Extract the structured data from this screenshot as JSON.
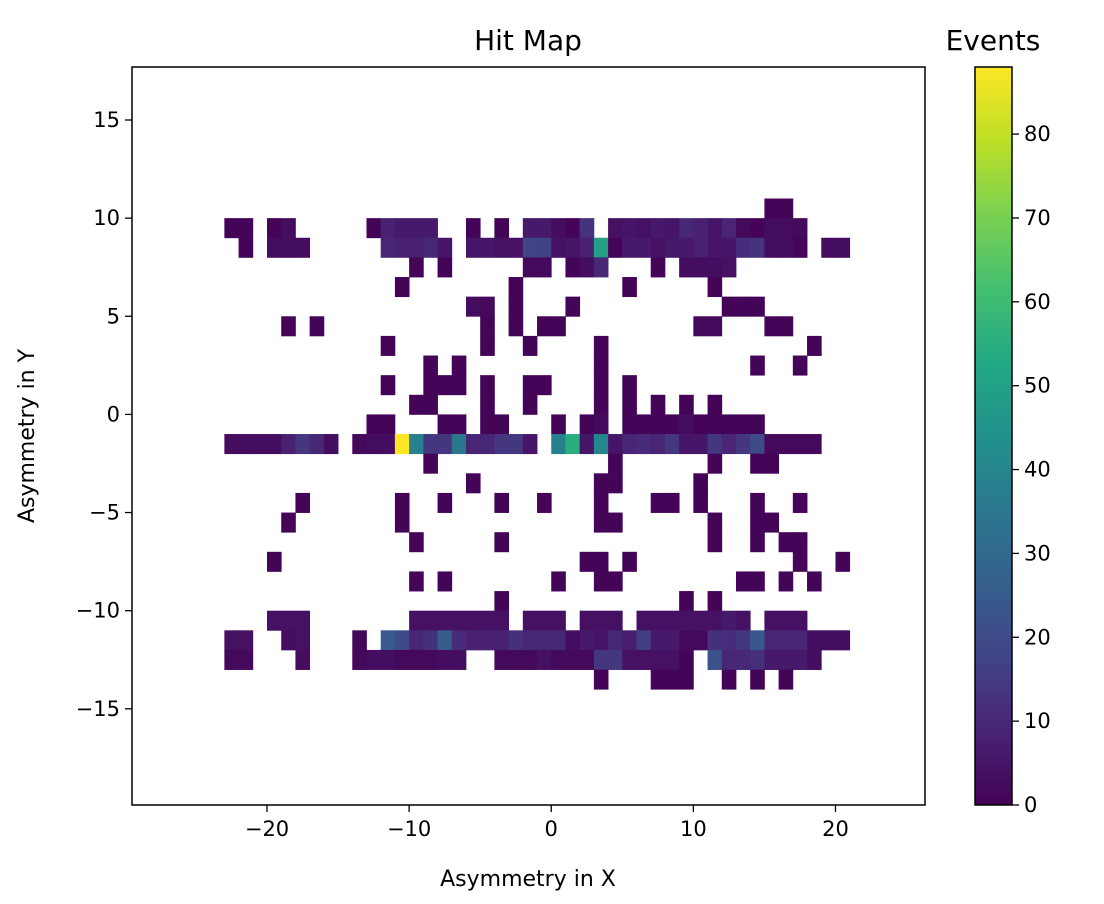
{
  "chart_data": {
    "type": "heatmap",
    "title": "Hit Map",
    "xlabel": "Asymmetry in X",
    "ylabel": "Asymmetry in Y",
    "xlim": [
      -29.5,
      26.3
    ],
    "ylim": [
      -19.9,
      17.7
    ],
    "xticks": [
      -20,
      -10,
      0,
      10,
      20
    ],
    "yticks": [
      -15,
      -10,
      -5,
      0,
      5,
      10,
      15
    ],
    "colorbar": {
      "title": "Events",
      "min": 0,
      "max": 88,
      "ticks": [
        0,
        10,
        20,
        30,
        40,
        50,
        60,
        70,
        80
      ],
      "colormap": "viridis"
    },
    "bins": {
      "x0": -23.0,
      "dx": 1.0,
      "y_rows": [
        10.5,
        9.5,
        8.5,
        7.5,
        6.5,
        5.5,
        4.5,
        3.5,
        2.5,
        1.5,
        0.5,
        -0.5,
        -1.5,
        -2.5,
        -3.5,
        -4.5,
        -5.5,
        -6.5,
        -7.5,
        -8.5,
        -9.5,
        -10.5,
        -11.5,
        -12.5,
        -13.5
      ],
      "rows": [
        [
          0,
          0,
          0,
          0,
          0,
          0,
          0,
          0,
          0,
          0,
          0,
          0,
          0,
          0,
          0,
          0,
          0,
          0,
          0,
          0,
          0,
          0,
          0,
          0,
          0,
          0,
          0,
          0,
          0,
          0,
          0,
          0,
          0,
          0,
          0,
          0,
          0,
          0,
          1,
          1,
          0,
          0,
          0,
          0
        ],
        [
          1,
          1,
          0,
          1,
          3,
          0,
          0,
          0,
          0,
          0,
          1,
          8,
          6,
          6,
          6,
          0,
          0,
          1,
          0,
          1,
          0,
          6,
          6,
          3,
          1,
          13,
          0,
          4,
          5,
          4,
          6,
          5,
          10,
          8,
          5,
          9,
          2,
          1,
          3,
          3,
          2,
          0,
          0,
          0
        ],
        [
          0,
          1,
          0,
          3,
          3,
          3,
          0,
          0,
          0,
          0,
          0,
          9,
          8,
          8,
          10,
          5,
          0,
          5,
          5,
          4,
          4,
          18,
          17,
          4,
          5,
          8,
          50,
          1,
          6,
          6,
          4,
          6,
          6,
          8,
          5,
          5,
          11,
          13,
          3,
          3,
          1,
          0,
          3,
          3
        ],
        [
          0,
          0,
          0,
          0,
          0,
          0,
          0,
          0,
          0,
          0,
          0,
          0,
          0,
          1,
          0,
          1,
          0,
          0,
          0,
          0,
          0,
          2,
          2,
          0,
          1,
          3,
          10,
          0,
          0,
          0,
          1,
          0,
          3,
          3,
          3,
          4,
          0,
          0,
          0,
          0,
          0,
          0,
          0,
          0
        ],
        [
          0,
          0,
          0,
          0,
          0,
          0,
          0,
          0,
          0,
          0,
          0,
          0,
          1,
          0,
          0,
          0,
          0,
          0,
          0,
          0,
          1,
          0,
          0,
          0,
          0,
          0,
          0,
          0,
          1,
          0,
          0,
          0,
          0,
          0,
          1,
          0,
          0,
          0,
          0,
          0,
          0,
          0,
          0,
          0
        ],
        [
          0,
          0,
          0,
          0,
          0,
          0,
          0,
          0,
          0,
          0,
          0,
          0,
          0,
          0,
          0,
          0,
          0,
          3,
          2,
          0,
          1,
          0,
          0,
          0,
          1,
          0,
          0,
          0,
          0,
          0,
          0,
          0,
          0,
          0,
          0,
          1,
          1,
          1,
          0,
          0,
          0,
          0,
          0,
          0
        ],
        [
          0,
          0,
          0,
          0,
          1,
          0,
          1,
          0,
          0,
          0,
          0,
          0,
          0,
          0,
          0,
          0,
          0,
          0,
          1,
          0,
          1,
          0,
          1,
          1,
          0,
          0,
          0,
          0,
          0,
          0,
          0,
          0,
          0,
          2,
          2,
          0,
          0,
          0,
          1,
          1,
          0,
          0,
          0,
          0
        ],
        [
          0,
          0,
          0,
          0,
          0,
          0,
          0,
          0,
          0,
          0,
          0,
          1,
          0,
          0,
          0,
          0,
          0,
          0,
          1,
          0,
          0,
          1,
          0,
          0,
          0,
          0,
          1,
          0,
          0,
          0,
          0,
          0,
          0,
          0,
          0,
          0,
          0,
          0,
          0,
          0,
          0,
          1,
          0,
          0
        ],
        [
          0,
          0,
          0,
          0,
          0,
          0,
          0,
          0,
          0,
          0,
          0,
          0,
          0,
          0,
          1,
          0,
          1,
          0,
          0,
          0,
          0,
          0,
          0,
          0,
          0,
          0,
          1,
          0,
          0,
          0,
          0,
          0,
          0,
          0,
          0,
          0,
          0,
          1,
          0,
          0,
          1,
          0,
          0,
          0
        ],
        [
          0,
          0,
          0,
          0,
          0,
          0,
          0,
          0,
          0,
          0,
          0,
          1,
          0,
          0,
          1,
          1,
          1,
          0,
          1,
          0,
          0,
          1,
          1,
          0,
          0,
          0,
          1,
          0,
          1,
          0,
          0,
          0,
          0,
          0,
          0,
          0,
          0,
          0,
          0,
          0,
          0,
          0,
          0,
          0
        ],
        [
          0,
          0,
          0,
          0,
          0,
          0,
          0,
          0,
          0,
          0,
          0,
          0,
          0,
          1,
          1,
          0,
          0,
          0,
          1,
          0,
          0,
          1,
          0,
          0,
          0,
          0,
          1,
          0,
          1,
          0,
          1,
          0,
          1,
          0,
          1,
          0,
          0,
          0,
          0,
          0,
          0,
          0,
          0,
          0
        ],
        [
          0,
          0,
          0,
          0,
          0,
          0,
          0,
          0,
          0,
          0,
          1,
          1,
          0,
          0,
          0,
          1,
          1,
          0,
          1,
          1,
          0,
          0,
          0,
          1,
          0,
          1,
          2,
          0,
          1,
          1,
          1,
          1,
          3,
          1,
          1,
          1,
          1,
          1,
          0,
          0,
          0,
          0,
          0,
          0
        ],
        [
          3,
          3,
          3,
          3,
          8,
          14,
          10,
          3,
          0,
          2,
          3,
          3,
          88,
          38,
          14,
          14,
          35,
          9,
          9,
          14,
          14,
          5,
          0,
          38,
          55,
          5,
          40,
          5,
          9,
          11,
          9,
          14,
          5,
          5,
          14,
          9,
          14,
          20,
          2,
          2,
          2,
          2,
          0,
          0
        ],
        [
          0,
          0,
          0,
          0,
          0,
          0,
          0,
          0,
          0,
          0,
          0,
          0,
          0,
          0,
          1,
          0,
          0,
          0,
          0,
          0,
          0,
          0,
          0,
          0,
          0,
          0,
          0,
          1,
          0,
          0,
          0,
          0,
          0,
          0,
          1,
          0,
          0,
          1,
          1,
          0,
          0,
          0,
          0,
          0
        ],
        [
          0,
          0,
          0,
          0,
          0,
          0,
          0,
          0,
          0,
          0,
          0,
          0,
          0,
          0,
          0,
          0,
          0,
          1,
          0,
          0,
          0,
          0,
          0,
          0,
          0,
          0,
          1,
          1,
          0,
          0,
          0,
          0,
          0,
          1,
          0,
          0,
          0,
          0,
          0,
          0,
          0,
          0,
          0,
          0
        ],
        [
          0,
          0,
          0,
          0,
          0,
          1,
          0,
          0,
          0,
          0,
          0,
          0,
          1,
          0,
          0,
          1,
          0,
          0,
          0,
          1,
          0,
          0,
          1,
          0,
          0,
          0,
          1,
          0,
          0,
          0,
          1,
          1,
          0,
          1,
          0,
          0,
          0,
          1,
          0,
          0,
          1,
          0,
          0,
          0
        ],
        [
          0,
          0,
          0,
          0,
          1,
          0,
          0,
          0,
          0,
          0,
          0,
          0,
          1,
          0,
          0,
          0,
          0,
          0,
          0,
          0,
          0,
          0,
          0,
          0,
          0,
          0,
          1,
          1,
          0,
          0,
          0,
          0,
          0,
          0,
          1,
          0,
          0,
          1,
          1,
          0,
          0,
          0,
          0,
          0
        ],
        [
          0,
          0,
          0,
          0,
          0,
          0,
          0,
          0,
          0,
          0,
          0,
          0,
          0,
          1,
          0,
          0,
          0,
          0,
          0,
          1,
          0,
          0,
          0,
          0,
          0,
          0,
          0,
          0,
          0,
          0,
          0,
          0,
          0,
          0,
          1,
          0,
          0,
          1,
          0,
          1,
          1,
          0,
          0,
          0
        ],
        [
          0,
          0,
          0,
          1,
          0,
          0,
          0,
          0,
          0,
          0,
          0,
          0,
          0,
          0,
          0,
          0,
          0,
          0,
          0,
          0,
          0,
          0,
          0,
          0,
          0,
          1,
          1,
          0,
          1,
          0,
          0,
          0,
          0,
          0,
          0,
          0,
          0,
          0,
          0,
          0,
          1,
          0,
          0,
          1
        ],
        [
          0,
          0,
          0,
          0,
          0,
          0,
          0,
          0,
          0,
          0,
          0,
          0,
          0,
          1,
          0,
          1,
          0,
          0,
          0,
          0,
          0,
          0,
          0,
          1,
          0,
          0,
          1,
          1,
          0,
          0,
          0,
          0,
          0,
          0,
          0,
          0,
          1,
          1,
          0,
          1,
          0,
          1,
          0,
          0
        ],
        [
          0,
          0,
          0,
          0,
          0,
          0,
          0,
          0,
          0,
          0,
          0,
          0,
          0,
          0,
          0,
          0,
          0,
          0,
          0,
          1,
          0,
          0,
          0,
          0,
          0,
          0,
          0,
          0,
          0,
          0,
          0,
          0,
          1,
          0,
          1,
          0,
          0,
          0,
          0,
          0,
          0,
          0,
          0,
          0
        ],
        [
          0,
          0,
          0,
          4,
          4,
          4,
          0,
          0,
          0,
          0,
          0,
          0,
          0,
          4,
          4,
          4,
          4,
          4,
          4,
          4,
          0,
          4,
          4,
          4,
          0,
          4,
          4,
          4,
          0,
          4,
          4,
          4,
          4,
          4,
          4,
          6,
          4,
          0,
          4,
          4,
          4,
          0,
          0,
          0
        ],
        [
          4,
          4,
          0,
          0,
          3,
          4,
          0,
          0,
          0,
          2,
          0,
          25,
          20,
          9,
          12,
          25,
          11,
          8,
          8,
          8,
          12,
          10,
          10,
          10,
          3,
          6,
          5,
          10,
          7,
          16,
          6,
          6,
          2,
          2,
          12,
          11,
          14,
          24,
          9,
          9,
          9,
          3,
          3,
          3
        ],
        [
          2,
          2,
          0,
          0,
          0,
          3,
          0,
          0,
          0,
          2,
          3,
          3,
          2,
          2,
          2,
          3,
          3,
          0,
          0,
          2,
          2,
          2,
          4,
          2,
          2,
          2,
          14,
          14,
          4,
          4,
          4,
          4,
          1,
          0,
          22,
          10,
          10,
          12,
          6,
          6,
          6,
          3,
          0,
          0
        ],
        [
          0,
          0,
          0,
          0,
          0,
          0,
          0,
          0,
          0,
          0,
          0,
          0,
          0,
          0,
          0,
          0,
          0,
          0,
          0,
          0,
          0,
          0,
          0,
          0,
          0,
          0,
          1,
          0,
          0,
          0,
          1,
          1,
          1,
          0,
          0,
          1,
          0,
          1,
          0,
          1,
          0,
          0,
          0,
          0
        ]
      ]
    }
  }
}
